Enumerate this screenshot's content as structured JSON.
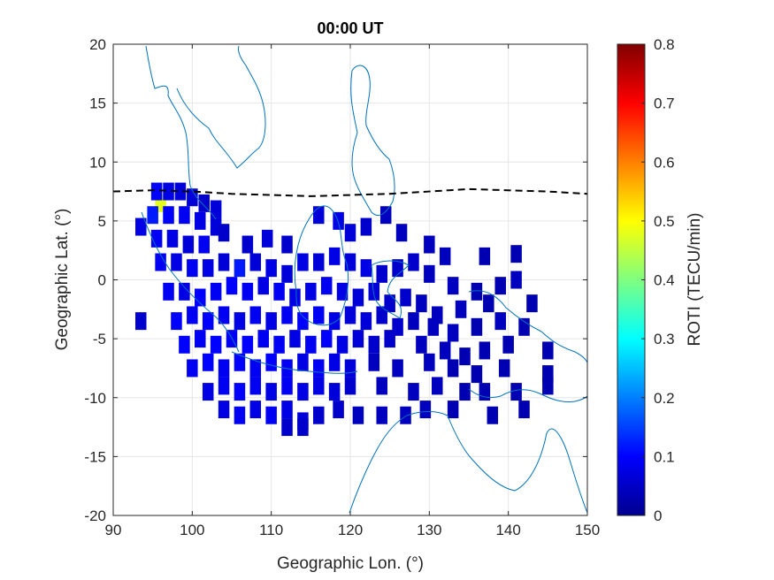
{
  "chart_data": {
    "type": "heatmap",
    "title": "00:00 UT",
    "xlabel": "Geographic Lon. (°)",
    "ylabel": "Geographic Lat. (°)",
    "xlim": [
      90,
      150
    ],
    "ylim": [
      -20,
      20
    ],
    "xticks": [
      "90",
      "100",
      "110",
      "120",
      "130",
      "140",
      "150"
    ],
    "yticks": [
      "20",
      "15",
      "10",
      "5",
      "0",
      "-5",
      "-10",
      "-15",
      "-20"
    ],
    "grid": true,
    "colorbar": {
      "label": "ROTI (TECU/min)",
      "range": [
        0,
        0.8
      ],
      "colormap": "jet",
      "ticks": [
        "0.8",
        "0.7",
        "0.6",
        "0.5",
        "0.4",
        "0.3",
        "0.2",
        "0.1",
        "0"
      ]
    },
    "dashed_line": {
      "color": "#000000",
      "points": [
        [
          90,
          7.5
        ],
        [
          95,
          7.6
        ],
        [
          100,
          7.5
        ],
        [
          105,
          7.3
        ],
        [
          110,
          7.2
        ],
        [
          115,
          7.1
        ],
        [
          120,
          7.2
        ],
        [
          125,
          7.3
        ],
        [
          130,
          7.5
        ],
        [
          135,
          7.7
        ],
        [
          140,
          7.6
        ],
        [
          145,
          7.5
        ],
        [
          150,
          7.3
        ]
      ]
    },
    "coastline_color": "#0072bd",
    "cells": [
      {
        "lon": 96,
        "lat": 6.5,
        "v": 0.48
      },
      {
        "lon": 95.5,
        "lat": 7.5,
        "v": 0.1
      },
      {
        "lon": 97,
        "lat": 7.5,
        "v": 0.08
      },
      {
        "lon": 98.5,
        "lat": 7.5,
        "v": 0.07
      },
      {
        "lon": 100,
        "lat": 7,
        "v": 0.07
      },
      {
        "lon": 101.5,
        "lat": 6.5,
        "v": 0.06
      },
      {
        "lon": 103,
        "lat": 6,
        "v": 0.07
      },
      {
        "lon": 95,
        "lat": 5.5,
        "v": 0.12
      },
      {
        "lon": 97,
        "lat": 5.5,
        "v": 0.1
      },
      {
        "lon": 99,
        "lat": 5.5,
        "v": 0.09
      },
      {
        "lon": 101,
        "lat": 5,
        "v": 0.08
      },
      {
        "lon": 103,
        "lat": 4.5,
        "v": 0.07
      },
      {
        "lon": 93.5,
        "lat": 4.5,
        "v": 0.08
      },
      {
        "lon": 95.5,
        "lat": 3.5,
        "v": 0.09
      },
      {
        "lon": 97.5,
        "lat": 3.5,
        "v": 0.08
      },
      {
        "lon": 99.5,
        "lat": 3,
        "v": 0.07
      },
      {
        "lon": 101.5,
        "lat": 3,
        "v": 0.09
      },
      {
        "lon": 104,
        "lat": 4,
        "v": 0.06
      },
      {
        "lon": 107,
        "lat": 3,
        "v": 0.06
      },
      {
        "lon": 109.5,
        "lat": 3.5,
        "v": 0.07
      },
      {
        "lon": 112,
        "lat": 3,
        "v": 0.06
      },
      {
        "lon": 116,
        "lat": 5.5,
        "v": 0.07
      },
      {
        "lon": 118.5,
        "lat": 5,
        "v": 0.08
      },
      {
        "lon": 120,
        "lat": 4,
        "v": 0.07
      },
      {
        "lon": 122,
        "lat": 4.5,
        "v": 0.06
      },
      {
        "lon": 124.5,
        "lat": 5.5,
        "v": 0.05
      },
      {
        "lon": 126.5,
        "lat": 4,
        "v": 0.05
      },
      {
        "lon": 130,
        "lat": 3,
        "v": 0.05
      },
      {
        "lon": 132,
        "lat": 2,
        "v": 0.05
      },
      {
        "lon": 137,
        "lat": 2,
        "v": 0.04
      },
      {
        "lon": 141,
        "lat": 2.2,
        "v": 0.04
      },
      {
        "lon": 96,
        "lat": 1.5,
        "v": 0.09
      },
      {
        "lon": 98,
        "lat": 1.5,
        "v": 0.08
      },
      {
        "lon": 100,
        "lat": 1,
        "v": 0.09
      },
      {
        "lon": 102,
        "lat": 1,
        "v": 0.08
      },
      {
        "lon": 104,
        "lat": 1.5,
        "v": 0.07
      },
      {
        "lon": 106,
        "lat": 1,
        "v": 0.12
      },
      {
        "lon": 108,
        "lat": 1.5,
        "v": 0.07
      },
      {
        "lon": 110,
        "lat": 1,
        "v": 0.08
      },
      {
        "lon": 112,
        "lat": 0.5,
        "v": 0.07
      },
      {
        "lon": 114,
        "lat": 1.5,
        "v": 0.08
      },
      {
        "lon": 116,
        "lat": 1.5,
        "v": 0.07
      },
      {
        "lon": 118,
        "lat": 2,
        "v": 0.08
      },
      {
        "lon": 120,
        "lat": 1.5,
        "v": 0.07
      },
      {
        "lon": 122,
        "lat": 1,
        "v": 0.08
      },
      {
        "lon": 124,
        "lat": 0.5,
        "v": 0.06
      },
      {
        "lon": 126,
        "lat": 1,
        "v": 0.06
      },
      {
        "lon": 128,
        "lat": 1.5,
        "v": 0.06
      },
      {
        "lon": 130,
        "lat": 0.5,
        "v": 0.05
      },
      {
        "lon": 133,
        "lat": -0.5,
        "v": 0.05
      },
      {
        "lon": 136,
        "lat": -1,
        "v": 0.04
      },
      {
        "lon": 139,
        "lat": -0.5,
        "v": 0.04
      },
      {
        "lon": 141,
        "lat": 0,
        "v": 0.05
      },
      {
        "lon": 97,
        "lat": -1,
        "v": 0.09
      },
      {
        "lon": 99,
        "lat": -1,
        "v": 0.08
      },
      {
        "lon": 101,
        "lat": -1.5,
        "v": 0.1
      },
      {
        "lon": 103,
        "lat": -1,
        "v": 0.09
      },
      {
        "lon": 105,
        "lat": -0.5,
        "v": 0.1
      },
      {
        "lon": 107,
        "lat": -1,
        "v": 0.09
      },
      {
        "lon": 109,
        "lat": -0.5,
        "v": 0.08
      },
      {
        "lon": 111,
        "lat": -1,
        "v": 0.09
      },
      {
        "lon": 113,
        "lat": -1.5,
        "v": 0.08
      },
      {
        "lon": 115,
        "lat": -1,
        "v": 0.08
      },
      {
        "lon": 117,
        "lat": -0.5,
        "v": 0.09
      },
      {
        "lon": 119,
        "lat": -1,
        "v": 0.08
      },
      {
        "lon": 121,
        "lat": -1.5,
        "v": 0.07
      },
      {
        "lon": 123,
        "lat": -1,
        "v": 0.07
      },
      {
        "lon": 125,
        "lat": -2,
        "v": 0.06
      },
      {
        "lon": 127,
        "lat": -1.5,
        "v": 0.06
      },
      {
        "lon": 129,
        "lat": -2,
        "v": 0.05
      },
      {
        "lon": 131,
        "lat": -3,
        "v": 0.05
      },
      {
        "lon": 134,
        "lat": -2.5,
        "v": 0.05
      },
      {
        "lon": 137.5,
        "lat": -2,
        "v": 0.04
      },
      {
        "lon": 143,
        "lat": -2,
        "v": 0.04
      },
      {
        "lon": 98,
        "lat": -3.5,
        "v": 0.1
      },
      {
        "lon": 100,
        "lat": -3,
        "v": 0.09
      },
      {
        "lon": 102,
        "lat": -3.5,
        "v": 0.1
      },
      {
        "lon": 104,
        "lat": -3,
        "v": 0.09
      },
      {
        "lon": 106,
        "lat": -3.5,
        "v": 0.08
      },
      {
        "lon": 108,
        "lat": -3,
        "v": 0.09
      },
      {
        "lon": 110,
        "lat": -3.5,
        "v": 0.08
      },
      {
        "lon": 112,
        "lat": -3,
        "v": 0.09
      },
      {
        "lon": 114,
        "lat": -3.5,
        "v": 0.1
      },
      {
        "lon": 116,
        "lat": -3,
        "v": 0.09
      },
      {
        "lon": 118,
        "lat": -3.5,
        "v": 0.08
      },
      {
        "lon": 120,
        "lat": -3,
        "v": 0.07
      },
      {
        "lon": 122,
        "lat": -3.5,
        "v": 0.07
      },
      {
        "lon": 124,
        "lat": -3,
        "v": 0.06
      },
      {
        "lon": 126,
        "lat": -4,
        "v": 0.06
      },
      {
        "lon": 128,
        "lat": -3.5,
        "v": 0.05
      },
      {
        "lon": 130.5,
        "lat": -4,
        "v": 0.05
      },
      {
        "lon": 133,
        "lat": -4.5,
        "v": 0.05
      },
      {
        "lon": 136,
        "lat": -4,
        "v": 0.04
      },
      {
        "lon": 139,
        "lat": -3.5,
        "v": 0.05
      },
      {
        "lon": 142,
        "lat": -4,
        "v": 0.04
      },
      {
        "lon": 93.5,
        "lat": -3.5,
        "v": 0.06
      },
      {
        "lon": 99,
        "lat": -5.5,
        "v": 0.1
      },
      {
        "lon": 101,
        "lat": -5,
        "v": 0.09
      },
      {
        "lon": 103,
        "lat": -5.5,
        "v": 0.1
      },
      {
        "lon": 105,
        "lat": -5,
        "v": 0.09
      },
      {
        "lon": 107,
        "lat": -5.5,
        "v": 0.1
      },
      {
        "lon": 109,
        "lat": -5,
        "v": 0.09
      },
      {
        "lon": 111,
        "lat": -5.5,
        "v": 0.09
      },
      {
        "lon": 113,
        "lat": -5,
        "v": 0.08
      },
      {
        "lon": 115,
        "lat": -5.5,
        "v": 0.09
      },
      {
        "lon": 117,
        "lat": -5,
        "v": 0.1
      },
      {
        "lon": 119,
        "lat": -5.5,
        "v": 0.08
      },
      {
        "lon": 121,
        "lat": -5,
        "v": 0.07
      },
      {
        "lon": 123,
        "lat": -5.5,
        "v": 0.06
      },
      {
        "lon": 125,
        "lat": -5,
        "v": 0.06
      },
      {
        "lon": 129,
        "lat": -5.5,
        "v": 0.05
      },
      {
        "lon": 132,
        "lat": -6,
        "v": 0.05
      },
      {
        "lon": 134.5,
        "lat": -6.5,
        "v": 0.04
      },
      {
        "lon": 137,
        "lat": -6,
        "v": 0.04
      },
      {
        "lon": 140,
        "lat": -5.5,
        "v": 0.04
      },
      {
        "lon": 145,
        "lat": -6,
        "v": 0.04
      },
      {
        "lon": 100,
        "lat": -7.5,
        "v": 0.09
      },
      {
        "lon": 102,
        "lat": -7,
        "v": 0.1
      },
      {
        "lon": 104,
        "lat": -7.5,
        "v": 0.09
      },
      {
        "lon": 106,
        "lat": -7,
        "v": 0.1
      },
      {
        "lon": 108,
        "lat": -7.5,
        "v": 0.09
      },
      {
        "lon": 110,
        "lat": -7,
        "v": 0.1
      },
      {
        "lon": 112,
        "lat": -7.5,
        "v": 0.09
      },
      {
        "lon": 114,
        "lat": -7,
        "v": 0.08
      },
      {
        "lon": 116,
        "lat": -7.5,
        "v": 0.09
      },
      {
        "lon": 118,
        "lat": -7,
        "v": 0.08
      },
      {
        "lon": 120,
        "lat": -7.5,
        "v": 0.07
      },
      {
        "lon": 123,
        "lat": -7,
        "v": 0.05
      },
      {
        "lon": 126,
        "lat": -7.5,
        "v": 0.05
      },
      {
        "lon": 130,
        "lat": -7,
        "v": 0.05
      },
      {
        "lon": 133,
        "lat": -7.5,
        "v": 0.04
      },
      {
        "lon": 136,
        "lat": -8,
        "v": 0.04
      },
      {
        "lon": 139.5,
        "lat": -7.5,
        "v": 0.04
      },
      {
        "lon": 145,
        "lat": -8,
        "v": 0.04
      },
      {
        "lon": 102,
        "lat": -9.5,
        "v": 0.08
      },
      {
        "lon": 104,
        "lat": -9,
        "v": 0.09
      },
      {
        "lon": 106,
        "lat": -9.5,
        "v": 0.1
      },
      {
        "lon": 108,
        "lat": -9,
        "v": 0.09
      },
      {
        "lon": 110,
        "lat": -9.5,
        "v": 0.08
      },
      {
        "lon": 112,
        "lat": -9,
        "v": 0.09
      },
      {
        "lon": 114,
        "lat": -9.5,
        "v": 0.08
      },
      {
        "lon": 116,
        "lat": -9,
        "v": 0.08
      },
      {
        "lon": 118,
        "lat": -9.5,
        "v": 0.07
      },
      {
        "lon": 120,
        "lat": -9,
        "v": 0.06
      },
      {
        "lon": 124,
        "lat": -9,
        "v": 0.05
      },
      {
        "lon": 128,
        "lat": -9.5,
        "v": 0.05
      },
      {
        "lon": 131,
        "lat": -9,
        "v": 0.05
      },
      {
        "lon": 134.5,
        "lat": -9.5,
        "v": 0.04
      },
      {
        "lon": 137,
        "lat": -9.5,
        "v": 0.04
      },
      {
        "lon": 141,
        "lat": -9.5,
        "v": 0.04
      },
      {
        "lon": 145,
        "lat": -9,
        "v": 0.04
      },
      {
        "lon": 104,
        "lat": -11,
        "v": 0.08
      },
      {
        "lon": 106,
        "lat": -11.5,
        "v": 0.09
      },
      {
        "lon": 108,
        "lat": -11,
        "v": 0.08
      },
      {
        "lon": 110,
        "lat": -11.5,
        "v": 0.09
      },
      {
        "lon": 112,
        "lat": -11,
        "v": 0.08
      },
      {
        "lon": 114,
        "lat": -12,
        "v": 0.07
      },
      {
        "lon": 116,
        "lat": -11.5,
        "v": 0.06
      },
      {
        "lon": 118.5,
        "lat": -11,
        "v": 0.06
      },
      {
        "lon": 121,
        "lat": -11.5,
        "v": 0.05
      },
      {
        "lon": 124,
        "lat": -11.5,
        "v": 0.05
      },
      {
        "lon": 127,
        "lat": -11.5,
        "v": 0.05
      },
      {
        "lon": 129.5,
        "lat": -11,
        "v": 0.05
      },
      {
        "lon": 133,
        "lat": -11,
        "v": 0.04
      },
      {
        "lon": 138,
        "lat": -11.5,
        "v": 0.04
      },
      {
        "lon": 142,
        "lat": -11,
        "v": 0.04
      },
      {
        "lon": 114,
        "lat": -12.5,
        "v": 0.06
      },
      {
        "lon": 112,
        "lat": -12.5,
        "v": 0.06
      }
    ]
  }
}
